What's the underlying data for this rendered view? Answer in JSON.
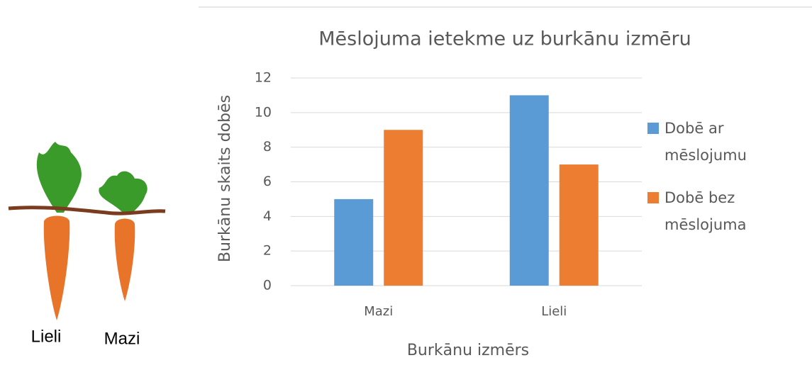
{
  "chart_data": {
    "type": "bar",
    "title": "Mēslojuma ietekme uz burkānu izmēru",
    "x_label": "Burkānu izmērs",
    "y_label": "Burkānu skaits dobēs",
    "categories": [
      "Mazi",
      "Lieli"
    ],
    "series": [
      {
        "name": "Dobē ar mēslojumu",
        "color": "#5b9bd5",
        "values": [
          5,
          11
        ]
      },
      {
        "name": "Dobē bez mēslojuma",
        "color": "#ed7d31",
        "values": [
          9,
          7
        ]
      }
    ],
    "ylim": [
      0,
      12
    ],
    "yticks": [
      0,
      2,
      4,
      6,
      8,
      10,
      12
    ],
    "grid": true,
    "legend": "right"
  },
  "illustration": {
    "labels": [
      "Lieli",
      "Mazi"
    ]
  }
}
